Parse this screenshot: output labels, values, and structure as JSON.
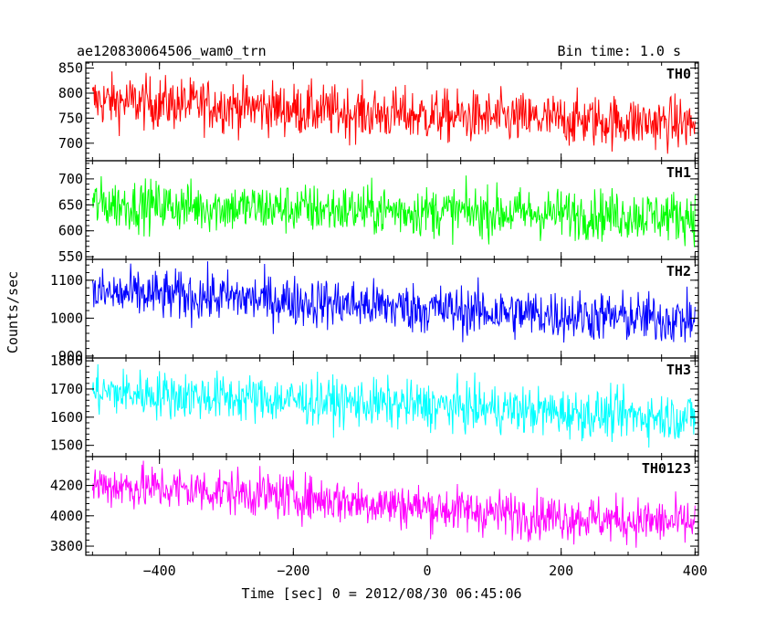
{
  "header": {
    "title": "ae120830064506_wam0_trn",
    "bin_time": "Bin time: 1.0 s"
  },
  "chart_data": {
    "type": "line",
    "xlabel": "Time [sec] 0 = 2012/08/30 06:45:06",
    "ylabel": "Counts/sec",
    "xlim": [
      -510,
      405
    ],
    "x_ticks": [
      -400,
      -200,
      0,
      200,
      400
    ],
    "x_tick_labels": [
      "−400",
      "−200",
      "0",
      "200",
      "400"
    ],
    "x_range_data": [
      -500,
      400
    ],
    "bin_time_s": 1.0,
    "panels": [
      {
        "name": "TH0",
        "color": "#ff0000",
        "ylim": [
          665,
          862
        ],
        "y_ticks": [
          700,
          750,
          800,
          850
        ],
        "trend": [
          [
            -500,
            785
          ],
          [
            -300,
            775
          ],
          [
            -100,
            760
          ],
          [
            100,
            750
          ],
          [
            250,
            745
          ],
          [
            400,
            738
          ]
        ],
        "noise_sd": 26
      },
      {
        "name": "TH1",
        "color": "#00ff00",
        "ylim": [
          545,
          735
        ],
        "y_ticks": [
          550,
          600,
          650,
          700
        ],
        "trend": [
          [
            -500,
            652
          ],
          [
            -300,
            645
          ],
          [
            -100,
            640
          ],
          [
            100,
            635
          ],
          [
            250,
            632
          ],
          [
            400,
            628
          ]
        ],
        "noise_sd": 24
      },
      {
        "name": "TH2",
        "color": "#0000ff",
        "ylim": [
          895,
          1155
        ],
        "y_ticks": [
          900,
          1000,
          1100
        ],
        "trend": [
          [
            -500,
            1065
          ],
          [
            -300,
            1055
          ],
          [
            -100,
            1035
          ],
          [
            100,
            1015
          ],
          [
            250,
            1005
          ],
          [
            400,
            995
          ]
        ],
        "noise_sd": 33
      },
      {
        "name": "TH3",
        "color": "#00ffff",
        "ylim": [
          1460,
          1810
        ],
        "y_ticks": [
          1500,
          1600,
          1700,
          1800
        ],
        "trend": [
          [
            -500,
            1690
          ],
          [
            -300,
            1670
          ],
          [
            -100,
            1650
          ],
          [
            100,
            1630
          ],
          [
            250,
            1610
          ],
          [
            400,
            1600
          ]
        ],
        "noise_sd": 42
      },
      {
        "name": "TH0123",
        "color": "#ff00ff",
        "ylim": [
          3740,
          4390
        ],
        "y_ticks": [
          3800,
          4000,
          4200
        ],
        "trend": [
          [
            -500,
            4205
          ],
          [
            -300,
            4160
          ],
          [
            -100,
            4090
          ],
          [
            100,
            4020
          ],
          [
            250,
            3980
          ],
          [
            400,
            3950
          ]
        ],
        "noise_sd": 75
      }
    ]
  }
}
